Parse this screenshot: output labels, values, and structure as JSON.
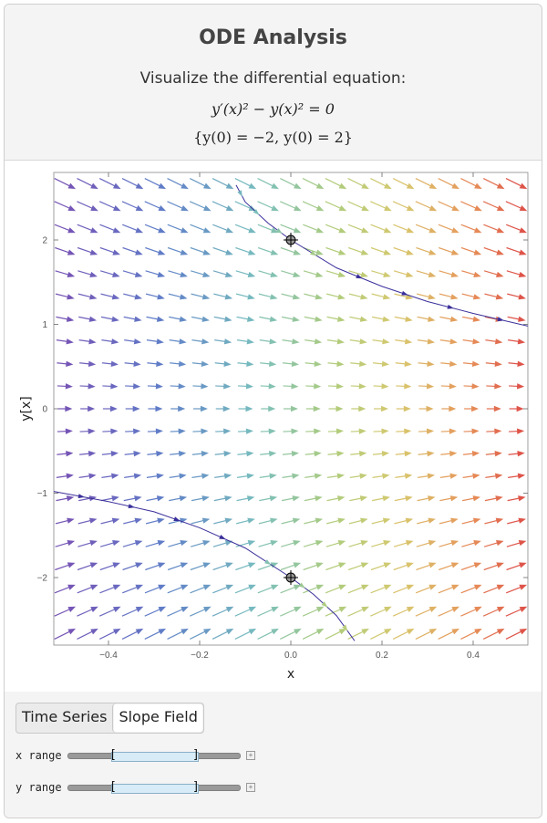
{
  "header": {
    "title": "ODE Analysis",
    "subtitle": "Visualize the differential equation:",
    "equation": "y′(x)² − y(x)² = 0",
    "initial_conditions": "{y(0) = −2, y(0) = 2}"
  },
  "tabs": [
    {
      "label": "Time Series",
      "active": false
    },
    {
      "label": "Slope Field",
      "active": true
    }
  ],
  "sliders": [
    {
      "label": "x range",
      "low": 0.25,
      "high": 0.75
    },
    {
      "label": "y range",
      "low": 0.25,
      "high": 0.75
    }
  ],
  "chart_data": {
    "type": "vector-field",
    "xlabel": "x",
    "ylabel": "y[x]",
    "xlim": [
      -0.52,
      0.52
    ],
    "ylim": [
      -2.8,
      2.8
    ],
    "xticks": [
      {
        "value": -0.4,
        "label": "−0.4"
      },
      {
        "value": -0.2,
        "label": "−0.2"
      },
      {
        "value": 0.0,
        "label": "0.0"
      },
      {
        "value": 0.2,
        "label": "0.2"
      },
      {
        "value": 0.4,
        "label": "0.4"
      }
    ],
    "yticks": [
      {
        "value": -2,
        "label": "−2"
      },
      {
        "value": -1,
        "label": "−1"
      },
      {
        "value": 0,
        "label": "0"
      },
      {
        "value": 1,
        "label": "1"
      },
      {
        "value": 2,
        "label": "2"
      }
    ],
    "field": "y' = -y",
    "color_scheme": "rainbow by x (purple left to red right)",
    "initial_points": [
      {
        "x": 0,
        "y": -2
      },
      {
        "x": 0,
        "y": 2
      }
    ],
    "solutions": [
      {
        "x": [
          -0.52,
          -0.4,
          -0.3,
          -0.2,
          -0.1,
          0.0,
          0.05,
          0.1,
          0.14
        ],
        "y": [
          -0.98,
          -1.1,
          -1.22,
          -1.41,
          -1.65,
          -2.0,
          -2.2,
          -2.45,
          -2.75
        ]
      },
      {
        "x": [
          -0.12,
          -0.1,
          -0.05,
          0.0,
          0.1,
          0.2,
          0.3,
          0.4,
          0.52
        ],
        "y": [
          2.65,
          2.45,
          2.2,
          2.0,
          1.67,
          1.45,
          1.27,
          1.13,
          0.98
        ]
      }
    ]
  }
}
